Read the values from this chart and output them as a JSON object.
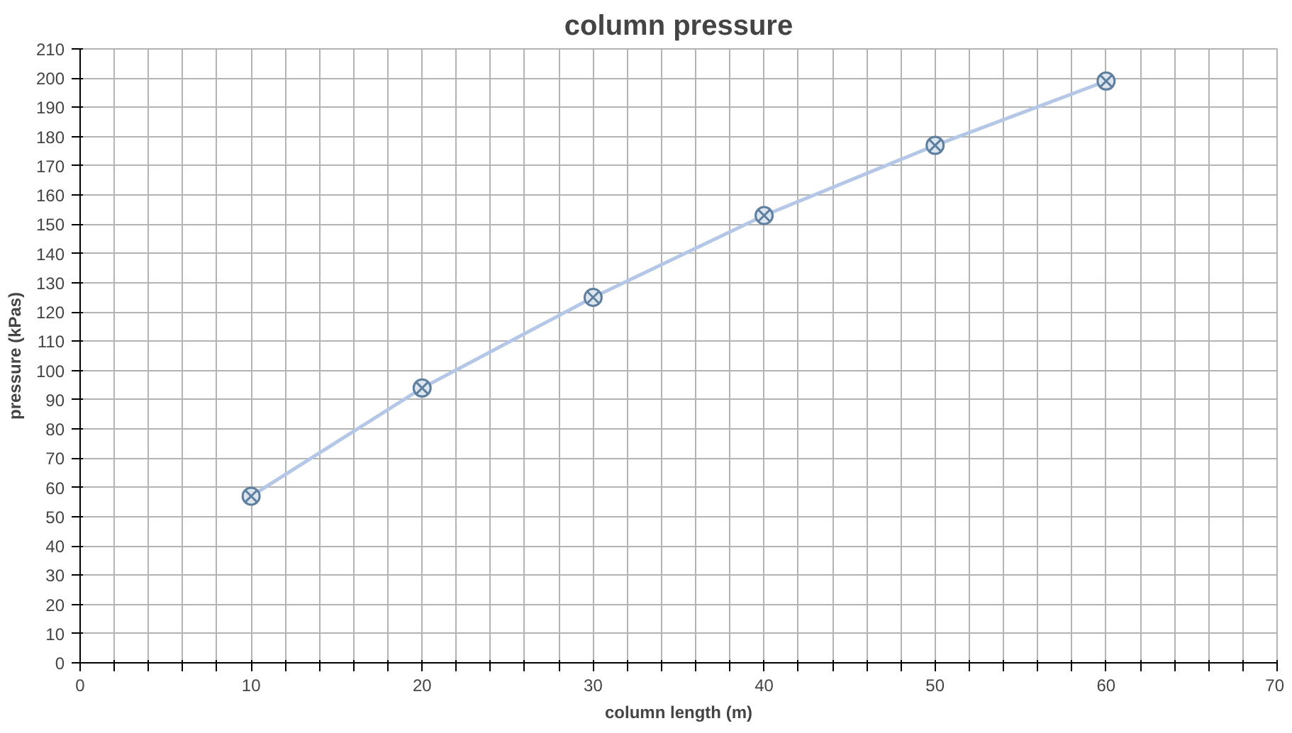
{
  "chart_data": {
    "type": "line",
    "title": "column pressure",
    "xlabel": "column length (m)",
    "ylabel": "pressure (kPas)",
    "x": [
      10,
      20,
      30,
      40,
      50,
      60
    ],
    "series": [
      {
        "color": "#b4c7e7",
        "values": [
          57,
          94,
          125,
          153,
          177,
          199
        ]
      }
    ],
    "marker": "cross",
    "grid": true,
    "line_style": "solid",
    "xlim": [
      0,
      70
    ],
    "ylim": [
      0,
      210
    ],
    "xticks": [
      0,
      {
        "value": 2,
        "label": null
      },
      {
        "value": 4,
        "label": null
      },
      {
        "value": 6,
        "label": null
      },
      {
        "value": 8,
        "label": null
      },
      10,
      {
        "value": 12,
        "label": null
      },
      {
        "value": 14,
        "label": null
      },
      {
        "value": 16,
        "label": null
      },
      {
        "value": 18,
        "label": null
      },
      20,
      {
        "value": 22,
        "label": null
      },
      {
        "value": 24,
        "label": null
      },
      {
        "value": 26,
        "label": null
      },
      {
        "value": 28,
        "label": null
      },
      30,
      {
        "value": 32,
        "label": null
      },
      {
        "value": 34,
        "label": null
      },
      {
        "value": 36,
        "label": null
      },
      {
        "value": 38,
        "label": null
      },
      40,
      {
        "value": 42,
        "label": null
      },
      {
        "value": 44,
        "label": null
      },
      {
        "value": 46,
        "label": null
      },
      {
        "value": 48,
        "label": null
      },
      50,
      {
        "value": 52,
        "label": null
      },
      {
        "value": 54,
        "label": null
      },
      {
        "value": 56,
        "label": null
      },
      {
        "value": 58,
        "label": null
      },
      60,
      {
        "value": 62,
        "label": null
      },
      {
        "value": 64,
        "label": null
      },
      {
        "value": 66,
        "label": null
      },
      {
        "value": 68,
        "label": null
      },
      70
    ],
    "yticks": [
      0,
      10,
      20,
      30,
      40,
      50,
      60,
      70,
      80,
      90,
      100,
      110,
      120,
      130,
      140,
      150,
      160,
      170,
      180,
      190,
      200,
      210
    ]
  }
}
